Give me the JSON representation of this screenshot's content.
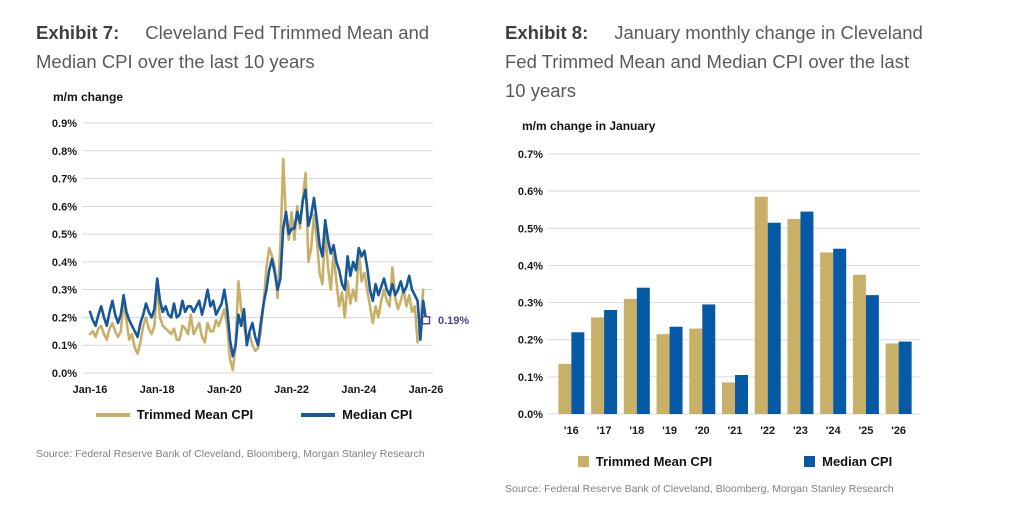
{
  "colors": {
    "gold": "#C8B069",
    "blue_line": "#17589C",
    "blue_bar": "#0659A4",
    "annotation": "#4C3F90",
    "grid": "#D9D9D9",
    "tick_text": "#1A1A1A",
    "title_bold": "#3F3F3F",
    "title_text": "#5A5A5A",
    "source_text": "#808080"
  },
  "exhibit7": {
    "label": "Exhibit 7:",
    "title": "Cleveland Fed Trimmed Mean and Median CPI over the last 10 years",
    "axis_title": "m/m change",
    "source": "Source: Federal Reserve Bank of Cleveland, Bloomberg, Morgan Stanley Research"
  },
  "exhibit8": {
    "label": "Exhibit 8:",
    "title": "January monthly change in Cleveland Fed Trimmed Mean and Median CPI over the last 10 years",
    "axis_title": "m/m change in January",
    "source": "Source: Federal Reserve Bank of Cleveland, Bloomberg, Morgan Stanley Research"
  },
  "chart_data": [
    {
      "type": "line",
      "title": "Cleveland Fed Trimmed Mean and Median CPI over the last 10 years",
      "ylabel": "m/m change",
      "ylim": [
        0,
        0.9
      ],
      "grid": "horizontal",
      "legend_position": "bottom",
      "end_label": "0.19%",
      "x_month_range": [
        0,
        120
      ],
      "y_ticks": [
        {
          "v": 0.0,
          "label": "0.0%"
        },
        {
          "v": 0.1,
          "label": "0.1%"
        },
        {
          "v": 0.2,
          "label": "0.2%"
        },
        {
          "v": 0.3,
          "label": "0.3%"
        },
        {
          "v": 0.4,
          "label": "0.4%"
        },
        {
          "v": 0.5,
          "label": "0.5%"
        },
        {
          "v": 0.6,
          "label": "0.6%"
        },
        {
          "v": 0.7,
          "label": "0.7%"
        },
        {
          "v": 0.8,
          "label": "0.8%"
        },
        {
          "v": 0.9,
          "label": "0.9%"
        }
      ],
      "x_ticks": [
        {
          "m": 0,
          "label": "Jan-16"
        },
        {
          "m": 24,
          "label": "Jan-18"
        },
        {
          "m": 48,
          "label": "Jan-20"
        },
        {
          "m": 72,
          "label": "Jan-22"
        },
        {
          "m": 96,
          "label": "Jan-24"
        },
        {
          "m": 120,
          "label": "Jan-26"
        }
      ],
      "series": [
        {
          "name": "Trimmed Mean CPI",
          "data_name": "trimmed-mean-cpi-line",
          "color": "#C8B069",
          "start_month": 0,
          "values": [
            0.14,
            0.15,
            0.13,
            0.16,
            0.17,
            0.14,
            0.12,
            0.16,
            0.18,
            0.15,
            0.13,
            0.15,
            0.26,
            0.19,
            0.12,
            0.14,
            0.09,
            0.07,
            0.11,
            0.17,
            0.2,
            0.16,
            0.14,
            0.17,
            0.31,
            0.2,
            0.17,
            0.16,
            0.15,
            0.14,
            0.16,
            0.12,
            0.12,
            0.17,
            0.16,
            0.14,
            0.21,
            0.14,
            0.16,
            0.18,
            0.13,
            0.11,
            0.18,
            0.15,
            0.15,
            0.19,
            0.17,
            0.2,
            0.23,
            0.17,
            0.05,
            0.01,
            0.1,
            0.33,
            0.23,
            0.17,
            0.12,
            0.14,
            0.1,
            0.08,
            0.09,
            0.15,
            0.25,
            0.38,
            0.45,
            0.42,
            0.38,
            0.27,
            0.46,
            0.77,
            0.55,
            0.48,
            0.58,
            0.48,
            0.6,
            0.52,
            0.63,
            0.72,
            0.4,
            0.45,
            0.57,
            0.48,
            0.36,
            0.32,
            0.52,
            0.38,
            0.3,
            0.43,
            0.33,
            0.24,
            0.29,
            0.2,
            0.33,
            0.25,
            0.3,
            0.26,
            0.44,
            0.33,
            0.36,
            0.3,
            0.24,
            0.18,
            0.24,
            0.2,
            0.26,
            0.3,
            0.26,
            0.24,
            0.38,
            0.27,
            0.23,
            0.26,
            0.3,
            0.24,
            0.28,
            0.22,
            0.24,
            0.11,
            0.18,
            0.3
          ]
        },
        {
          "name": "Median CPI",
          "data_name": "median-cpi-line",
          "color": "#17589C",
          "start_month": 0,
          "values": [
            0.22,
            0.19,
            0.17,
            0.21,
            0.24,
            0.2,
            0.17,
            0.22,
            0.26,
            0.21,
            0.18,
            0.21,
            0.28,
            0.22,
            0.19,
            0.17,
            0.15,
            0.13,
            0.18,
            0.21,
            0.25,
            0.22,
            0.2,
            0.23,
            0.34,
            0.26,
            0.22,
            0.24,
            0.21,
            0.2,
            0.25,
            0.2,
            0.21,
            0.26,
            0.22,
            0.24,
            0.24,
            0.22,
            0.24,
            0.26,
            0.21,
            0.25,
            0.3,
            0.24,
            0.26,
            0.21,
            0.23,
            0.25,
            0.3,
            0.23,
            0.12,
            0.06,
            0.1,
            0.21,
            0.17,
            0.23,
            0.1,
            0.15,
            0.18,
            0.13,
            0.1,
            0.18,
            0.25,
            0.3,
            0.37,
            0.41,
            0.36,
            0.3,
            0.34,
            0.52,
            0.58,
            0.5,
            0.52,
            0.52,
            0.58,
            0.54,
            0.62,
            0.66,
            0.53,
            0.57,
            0.63,
            0.55,
            0.46,
            0.42,
            0.55,
            0.48,
            0.43,
            0.46,
            0.4,
            0.37,
            0.32,
            0.3,
            0.42,
            0.35,
            0.4,
            0.37,
            0.45,
            0.42,
            0.44,
            0.38,
            0.3,
            0.26,
            0.32,
            0.28,
            0.31,
            0.34,
            0.3,
            0.28,
            0.32,
            0.28,
            0.3,
            0.33,
            0.29,
            0.31,
            0.35,
            0.3,
            0.28,
            0.26,
            0.12,
            0.26,
            0.19
          ]
        }
      ]
    },
    {
      "type": "bar",
      "title": "January monthly change in Cleveland Fed Trimmed Mean and Median CPI over the last 10 years",
      "ylabel": "m/m change in January",
      "ylim": [
        0,
        0.7
      ],
      "grid": "horizontal",
      "legend_position": "bottom",
      "categories": [
        "'16",
        "'17",
        "'18",
        "'19",
        "'20",
        "'21",
        "'22",
        "'23",
        "'24",
        "'25",
        "'26"
      ],
      "y_ticks": [
        {
          "v": 0.0,
          "label": "0.0%"
        },
        {
          "v": 0.1,
          "label": "0.1%"
        },
        {
          "v": 0.2,
          "label": "0.2%"
        },
        {
          "v": 0.3,
          "label": "0.3%"
        },
        {
          "v": 0.4,
          "label": "0.4%"
        },
        {
          "v": 0.5,
          "label": "0.5%"
        },
        {
          "v": 0.6,
          "label": "0.6%"
        },
        {
          "v": 0.7,
          "label": "0.7%"
        }
      ],
      "series": [
        {
          "name": "Trimmed Mean CPI",
          "data_name": "trimmed-mean-cpi-bars",
          "color": "#C8B069",
          "values": [
            0.135,
            0.26,
            0.31,
            0.215,
            0.23,
            0.085,
            0.585,
            0.525,
            0.435,
            0.375,
            0.19
          ]
        },
        {
          "name": "Median CPI",
          "data_name": "median-cpi-bars",
          "color": "#0659A4",
          "values": [
            0.22,
            0.28,
            0.34,
            0.235,
            0.295,
            0.105,
            0.515,
            0.545,
            0.445,
            0.32,
            0.195
          ]
        }
      ]
    }
  ]
}
